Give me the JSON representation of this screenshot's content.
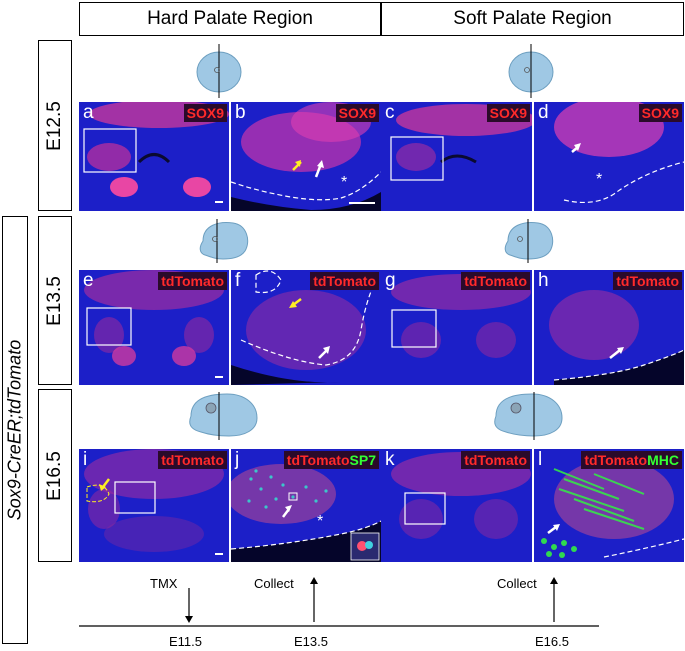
{
  "headers": {
    "hard": "Hard Palate Region",
    "soft": "Soft Palate Region"
  },
  "stages": {
    "e125": "E12.5",
    "e135": "E13.5",
    "e165": "E16.5"
  },
  "genotype": "Sox9-CreER;tdTomato",
  "panels": [
    {
      "letter": "a",
      "marker1": "SOX9",
      "marker2": ""
    },
    {
      "letter": "b",
      "marker1": "SOX9",
      "marker2": ""
    },
    {
      "letter": "c",
      "marker1": "SOX9",
      "marker2": ""
    },
    {
      "letter": "d",
      "marker1": "SOX9",
      "marker2": ""
    },
    {
      "letter": "e",
      "marker1": "tdTomato",
      "marker2": ""
    },
    {
      "letter": "f",
      "marker1": "tdTomato",
      "marker2": ""
    },
    {
      "letter": "g",
      "marker1": "tdTomato",
      "marker2": ""
    },
    {
      "letter": "h",
      "marker1": "tdTomato",
      "marker2": ""
    },
    {
      "letter": "i",
      "marker1": "tdTomato",
      "marker2": ""
    },
    {
      "letter": "j",
      "marker1": "tdTomato",
      "marker2": "SP7"
    },
    {
      "letter": "k",
      "marker1": "tdTomato",
      "marker2": ""
    },
    {
      "letter": "l",
      "marker1": "tdTomato",
      "marker2": "MHC"
    }
  ],
  "timeline": {
    "tmx": "TMX",
    "collect1": "Collect",
    "collect2": "Collect",
    "t1": "E11.5",
    "t2": "E13.5",
    "t3": "E16.5"
  },
  "colors": {
    "tissue_blue": "#1a1fd0",
    "signal_red": "#ff2a2a",
    "signal_green": "#33ff33",
    "head_blue": "#9fc8e4"
  }
}
